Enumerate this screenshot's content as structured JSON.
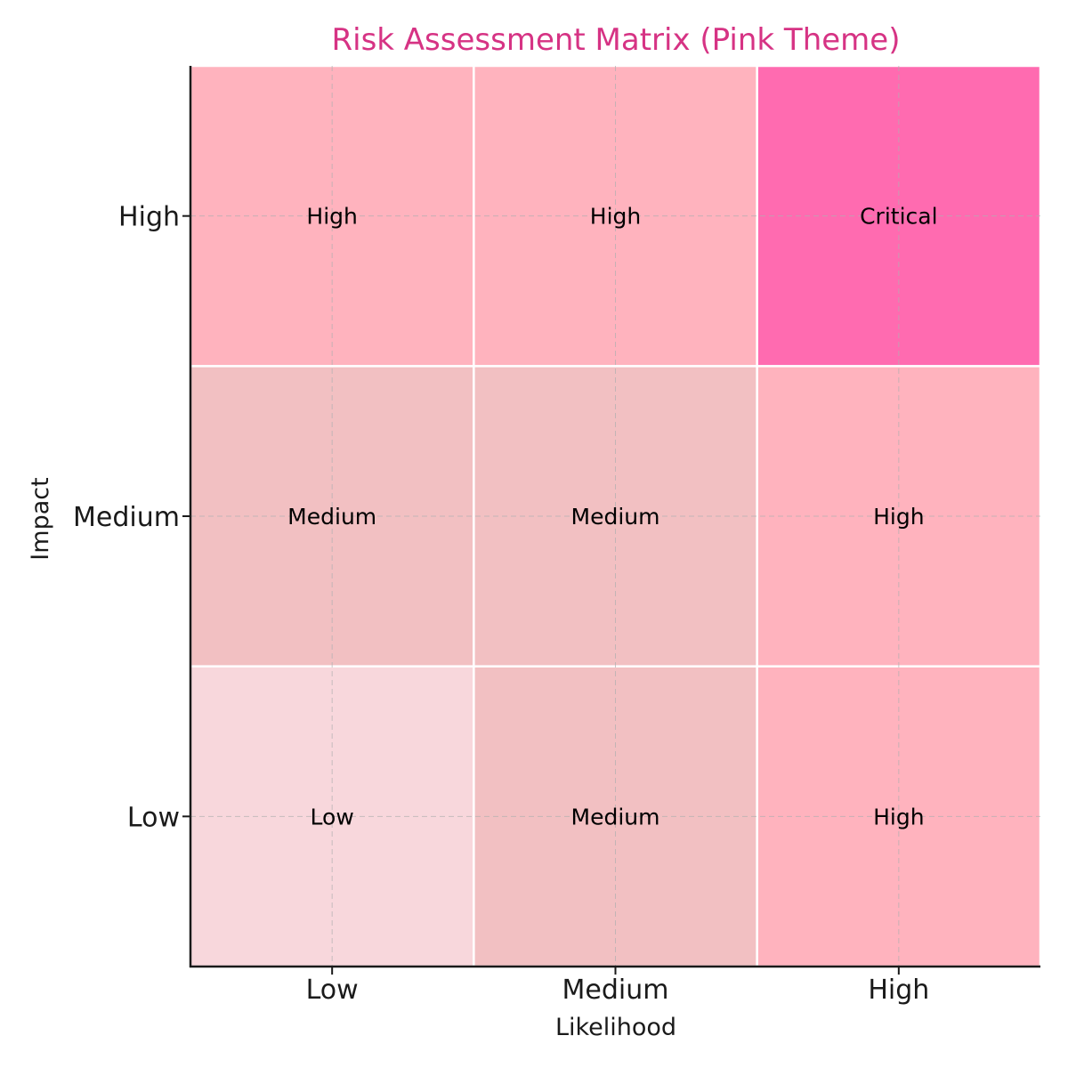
{
  "chart_data": {
    "type": "heatmap",
    "title": "Risk Assessment Matrix (Pink Theme)",
    "xlabel": "Likelihood",
    "ylabel": "Impact",
    "x_categories": [
      "Low",
      "Medium",
      "High"
    ],
    "y_categories": [
      "Low",
      "Medium",
      "High"
    ],
    "cells": [
      {
        "x": "Low",
        "y": "Low",
        "label": "Low"
      },
      {
        "x": "Medium",
        "y": "Low",
        "label": "Medium"
      },
      {
        "x": "High",
        "y": "Low",
        "label": "High"
      },
      {
        "x": "Low",
        "y": "Medium",
        "label": "Medium"
      },
      {
        "x": "Medium",
        "y": "Medium",
        "label": "Medium"
      },
      {
        "x": "High",
        "y": "Medium",
        "label": "High"
      },
      {
        "x": "Low",
        "y": "High",
        "label": "High"
      },
      {
        "x": "Medium",
        "y": "High",
        "label": "High"
      },
      {
        "x": "High",
        "y": "High",
        "label": "Critical"
      }
    ],
    "level_colors": {
      "Low": "#f8d7dc",
      "Medium": "#f2c0c2",
      "High": "#ffb3be",
      "Critical": "#ff6bb0"
    },
    "title_color": "#d63384",
    "grid": true
  }
}
